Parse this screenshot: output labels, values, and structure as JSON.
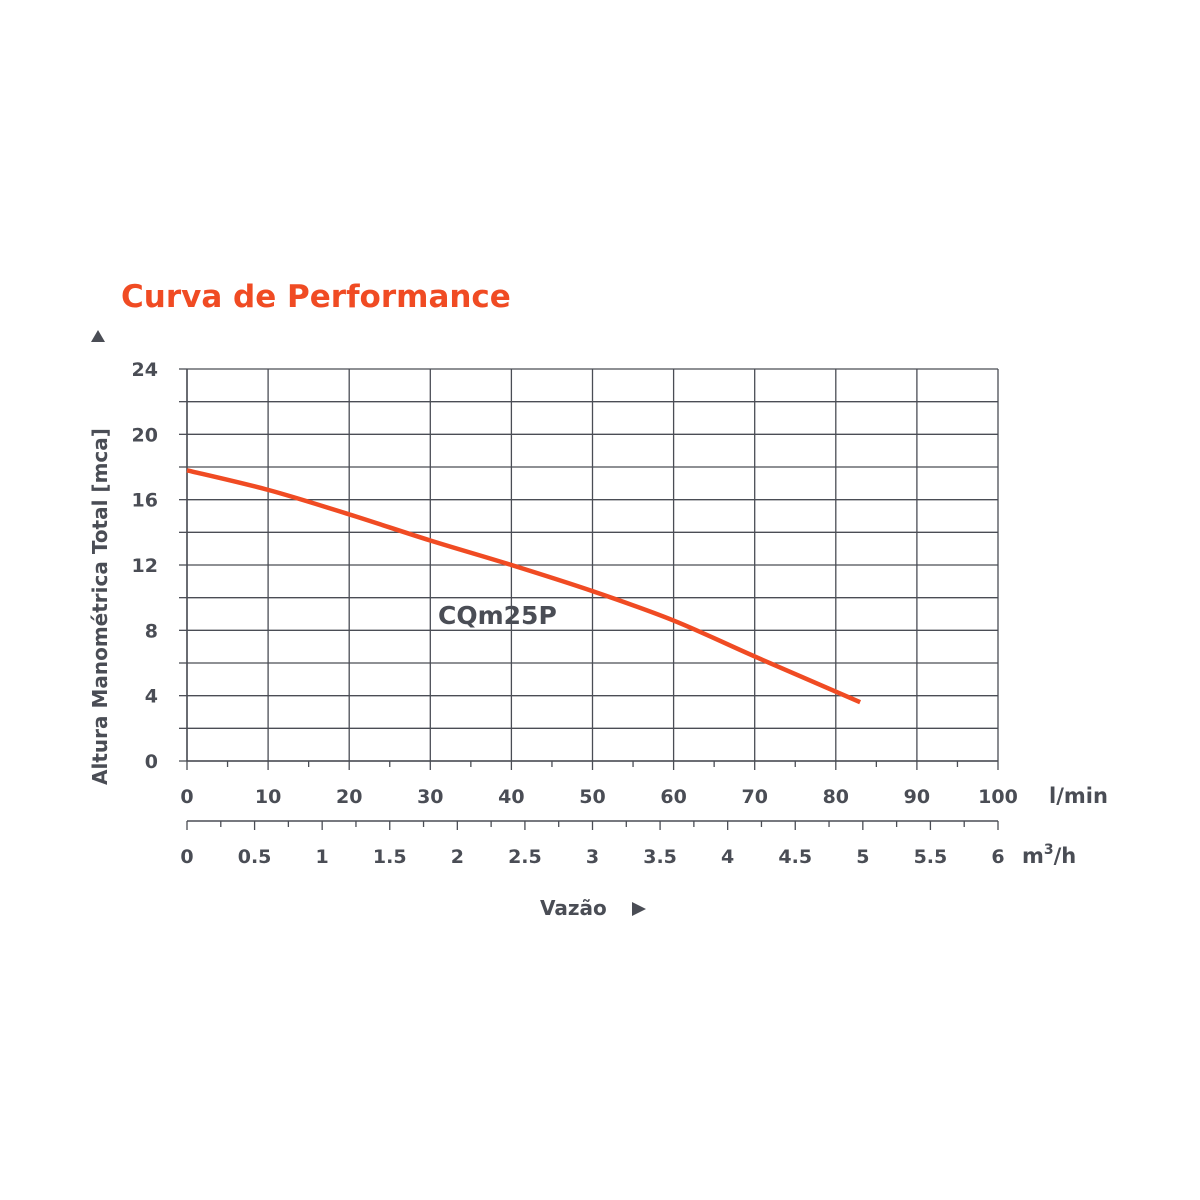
{
  "chart_data": {
    "type": "line",
    "title": "Curva de Performance",
    "ylabel": "Altura Manométrica Total [mca]",
    "xlabel": "Vazão",
    "ylim": [
      0,
      24
    ],
    "yticks": [
      0,
      4,
      8,
      12,
      16,
      20,
      24
    ],
    "xlim": [
      0,
      100
    ],
    "xunit": "l/min",
    "xticks": [
      0,
      10,
      20,
      30,
      40,
      50,
      60,
      70,
      80,
      90,
      100
    ],
    "x2lim": [
      0,
      6
    ],
    "x2unit_base": "m",
    "x2unit_sup": "3",
    "x2unit_tail": "/h",
    "x2ticks": [
      "0",
      "0.5",
      "1",
      "1.5",
      "2",
      "2.5",
      "3",
      "3.5",
      "4",
      "4.5",
      "5",
      "5.5",
      "6"
    ],
    "grid": true,
    "series": [
      {
        "name": "CQm25P",
        "color": "#f04b23",
        "x": [
          0,
          10,
          20,
          30,
          40,
          50,
          60,
          70,
          83
        ],
        "y": [
          17.8,
          16.6,
          15.1,
          13.5,
          12.0,
          10.4,
          8.6,
          6.4,
          3.6
        ]
      }
    ],
    "colors": {
      "title": "#f04b23",
      "text": "#4a4d55",
      "grid": "#4a4d55",
      "curve": "#f04b23"
    }
  }
}
